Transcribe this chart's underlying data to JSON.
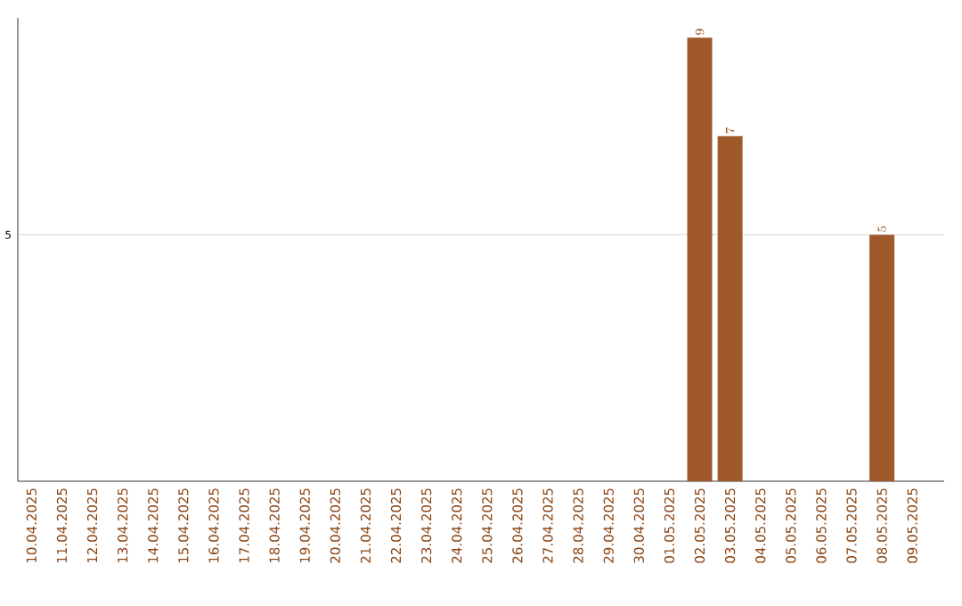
{
  "chart_data": {
    "type": "bar",
    "categories": [
      "10.04.2025",
      "11.04.2025",
      "12.04.2025",
      "13.04.2025",
      "14.04.2025",
      "15.04.2025",
      "16.04.2025",
      "17.04.2025",
      "18.04.2025",
      "19.04.2025",
      "20.04.2025",
      "21.04.2025",
      "22.04.2025",
      "23.04.2025",
      "24.04.2025",
      "25.04.2025",
      "26.04.2025",
      "27.04.2025",
      "28.04.2025",
      "29.04.2025",
      "30.04.2025",
      "01.05.2025",
      "02.05.2025",
      "03.05.2025",
      "04.05.2025",
      "05.05.2025",
      "06.05.2025",
      "07.05.2025",
      "08.05.2025",
      "09.05.2025"
    ],
    "values": [
      null,
      null,
      null,
      null,
      null,
      null,
      null,
      null,
      null,
      null,
      null,
      null,
      null,
      null,
      null,
      null,
      null,
      null,
      null,
      null,
      null,
      null,
      9,
      7,
      null,
      null,
      null,
      null,
      5,
      null
    ],
    "color": "#a0592b",
    "ylim": [
      0,
      9.4
    ],
    "yticks": [
      5
    ],
    "grid": "y",
    "data_labels": true
  }
}
